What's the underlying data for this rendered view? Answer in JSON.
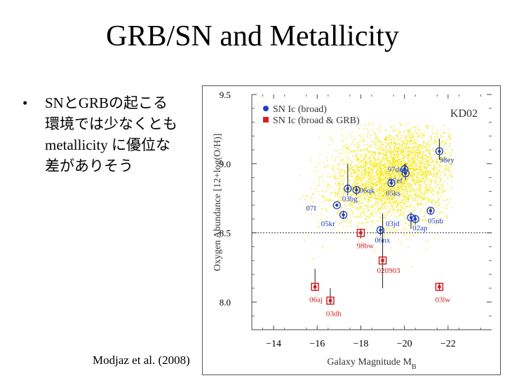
{
  "slide": {
    "title": "GRB/SN and Metallicity",
    "bullet_symbol": "•",
    "bullet_lines": [
      "SNとGRBの起こる",
      "環境では少なくとも",
      "metallicity に優位な",
      "差がありそう"
    ],
    "credit": "Modjaz et al. (2008)"
  },
  "chart_data": {
    "type": "scatter",
    "xlabel": "Galaxy Magnitude M",
    "xlabel_sub": "B",
    "ylabel": "Oxygen Abundance [12+log(O/H)]",
    "xlim": [
      -13,
      -24
    ],
    "ylim": [
      7.8,
      9.5
    ],
    "x_ticks": [
      "−14",
      "−16",
      "−18",
      "−20",
      "−22"
    ],
    "x_tick_values": [
      -14,
      -16,
      -18,
      -20,
      -22
    ],
    "y_ticks": [
      "9.5",
      "9.0",
      "8.5",
      "8.0"
    ],
    "y_tick_values": [
      9.5,
      9.0,
      8.5,
      8.0
    ],
    "reference_line_y": 8.5,
    "panel_label": "KD02",
    "legend_position": "top-left",
    "background_cloud": {
      "color": "#f7e600",
      "center_x": -19.5,
      "center_y": 8.92,
      "description_hidden": true
    },
    "series": [
      {
        "name": "SN Ic (broad)",
        "color": "#1f3fbf",
        "points": [
          {
            "label": "98ey",
            "x": -21.6,
            "y": 9.09,
            "err_y": [
              9.03,
              9.18
            ]
          },
          {
            "label": "97dq",
            "x": -20.0,
            "y": 8.96,
            "err_y": [
              8.93,
              9.0
            ]
          },
          {
            "label": "97ef",
            "x": -20.05,
            "y": 8.93,
            "err_y": [
              8.88,
              9.0
            ]
          },
          {
            "label": "05ks",
            "x": -19.4,
            "y": 8.86,
            "err_y": [
              8.84,
              8.88
            ]
          },
          {
            "label": "06qk",
            "x": -17.8,
            "y": 8.81,
            "err_y": [
              8.77,
              8.84
            ]
          },
          {
            "label": "03bg",
            "x": -17.4,
            "y": 8.82,
            "err_y": [
              8.77,
              9.0
            ]
          },
          {
            "label": "07I",
            "x": -16.9,
            "y": 8.7,
            "err_y": [
              8.69,
              8.71
            ]
          },
          {
            "label": "05kr",
            "x": -17.2,
            "y": 8.63,
            "err_y": [
              8.6,
              8.66
            ]
          },
          {
            "label": "03jd",
            "x": -20.3,
            "y": 8.61,
            "err_y": [
              8.53,
              8.65
            ]
          },
          {
            "label": "02ap",
            "x": -20.5,
            "y": 8.6,
            "err_y": [
              8.56,
              8.63
            ]
          },
          {
            "label": "05nb",
            "x": -21.2,
            "y": 8.66,
            "err_y": [
              8.63,
              8.68
            ]
          },
          {
            "label": "06nx",
            "x": -18.9,
            "y": 8.52,
            "err_y": [
              8.48,
              8.55
            ]
          }
        ]
      },
      {
        "name": "SN Ic (broad & GRB)",
        "color": "#d42020",
        "points": [
          {
            "label": "98bw",
            "x": -18.0,
            "y": 8.5,
            "err_y": [
              8.46,
              8.53
            ]
          },
          {
            "label": "020903",
            "x": -19.0,
            "y": 8.3,
            "err_y": [
              8.1,
              8.64
            ]
          },
          {
            "label": "06aj",
            "x": -15.9,
            "y": 8.11,
            "err_y": [
              8.08,
              8.24
            ]
          },
          {
            "label": "03dh",
            "x": -16.6,
            "y": 8.01,
            "err_y": [
              7.98,
              8.1
            ]
          },
          {
            "label": "03lw",
            "x": -21.6,
            "y": 8.11,
            "err_y": [
              8.08,
              8.14
            ]
          }
        ]
      }
    ]
  }
}
